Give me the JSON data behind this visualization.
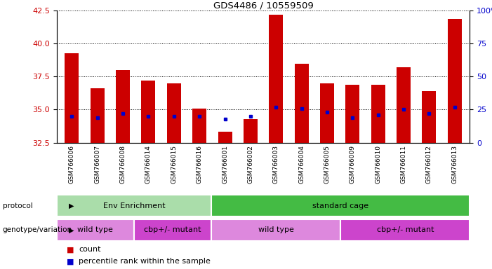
{
  "title": "GDS4486 / 10559509",
  "samples": [
    "GSM766006",
    "GSM766007",
    "GSM766008",
    "GSM766014",
    "GSM766015",
    "GSM766016",
    "GSM766001",
    "GSM766002",
    "GSM766003",
    "GSM766004",
    "GSM766005",
    "GSM766009",
    "GSM766010",
    "GSM766011",
    "GSM766012",
    "GSM766013"
  ],
  "bar_heights": [
    39.3,
    36.6,
    38.0,
    37.2,
    37.0,
    35.1,
    33.3,
    34.3,
    42.2,
    38.5,
    37.0,
    36.9,
    36.9,
    38.2,
    36.4,
    41.9
  ],
  "blue_dots": [
    34.5,
    34.4,
    34.7,
    34.5,
    34.5,
    34.5,
    34.3,
    34.5,
    35.2,
    35.1,
    34.8,
    34.4,
    34.6,
    35.0,
    34.7,
    35.2
  ],
  "ylim_left": [
    32.5,
    42.5
  ],
  "ylim_right": [
    0,
    100
  ],
  "yticks_left": [
    32.5,
    35.0,
    37.5,
    40.0,
    42.5
  ],
  "yticks_right": [
    0,
    25,
    50,
    75,
    100
  ],
  "bar_color": "#cc0000",
  "dot_color": "#0000cc",
  "baseline": 32.5,
  "proto_spans": [
    [
      0,
      6,
      "Env Enrichment",
      "#aaddaa"
    ],
    [
      6,
      16,
      "standard cage",
      "#44bb44"
    ]
  ],
  "geno_spans": [
    [
      0,
      3,
      "wild type",
      "#dd88dd"
    ],
    [
      3,
      6,
      "cbp+/- mutant",
      "#cc44cc"
    ],
    [
      6,
      11,
      "wild type",
      "#dd88dd"
    ],
    [
      11,
      16,
      "cbp+/- mutant",
      "#cc44cc"
    ]
  ]
}
